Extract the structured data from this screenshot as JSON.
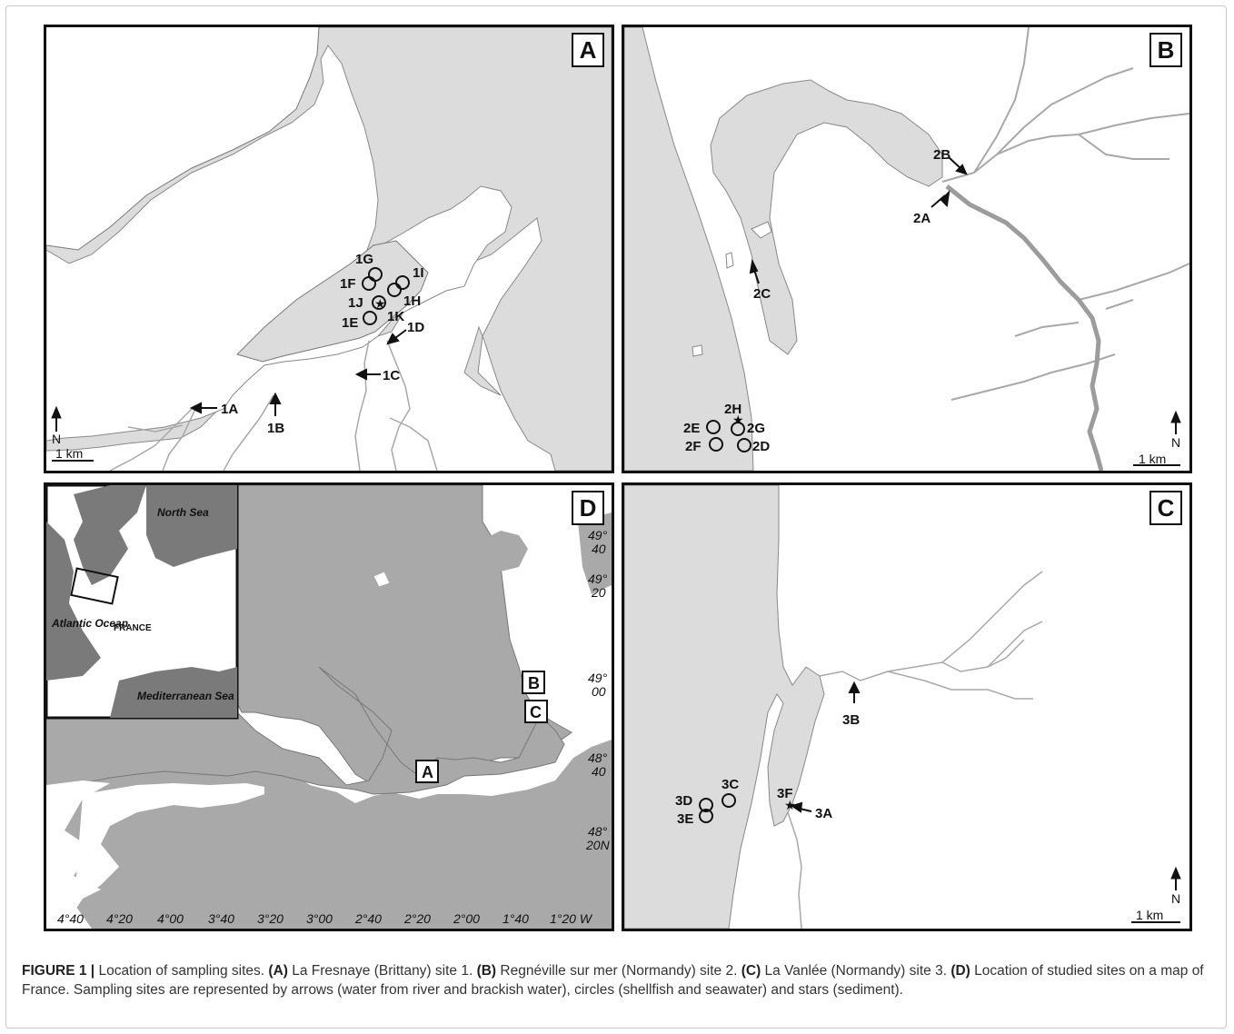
{
  "figure": {
    "panels": {
      "A": {
        "letter": "A",
        "sites": [
          "1A",
          "1B",
          "1C",
          "1D",
          "1E",
          "1F",
          "1G",
          "1H",
          "1I",
          "1J",
          "1K"
        ],
        "north": "N",
        "scale": "1 km"
      },
      "B": {
        "letter": "B",
        "sites": [
          "2A",
          "2B",
          "2C",
          "2D",
          "2E",
          "2F",
          "2G",
          "2H"
        ],
        "north": "N",
        "scale": "1 km"
      },
      "C": {
        "letter": "C",
        "sites": [
          "3A",
          "3B",
          "3C",
          "3D",
          "3E",
          "3F"
        ],
        "north": "N",
        "scale": "1 km"
      },
      "D": {
        "letter": "D",
        "lat_labels": [
          "49°\n40",
          "49°\n20",
          "49°\n00",
          "48°\n40",
          "48°\n20N"
        ],
        "lon_labels": [
          "4°40",
          "4°20",
          "4°00",
          "3°40",
          "3°20",
          "3°00",
          "2°40",
          "2°20",
          "2°00",
          "1°40",
          "1°20 W"
        ],
        "boxes": [
          "A",
          "B",
          "C"
        ],
        "inset": {
          "labels": [
            "North Sea",
            "Atlantic Ocean",
            "FRANCE",
            "Mediterranean Sea"
          ]
        }
      }
    },
    "caption": {
      "figure_label": "FIGURE 1 |",
      "intro": " Location of sampling sites. ",
      "a_label": "(A)",
      "a_text": " La Fresnaye (Brittany) site 1. ",
      "b_label": "(B)",
      "b_text": " Regnéville sur mer (Normandy) site 2. ",
      "c_label": "(C)",
      "c_text": " La Vanlée (Normandy) site 3. ",
      "d_label": "(D)",
      "d_text": " Location of studied sites on a map of France. Sampling sites are represented by arrows (water from river and brackish water), circles (shellfish and seawater) and stars (sediment)."
    },
    "colors": {
      "land_gray": "#dcdcdc",
      "dark_gray": "#9c9c9c",
      "river": "#a8a8a8",
      "border": "#111111"
    }
  }
}
